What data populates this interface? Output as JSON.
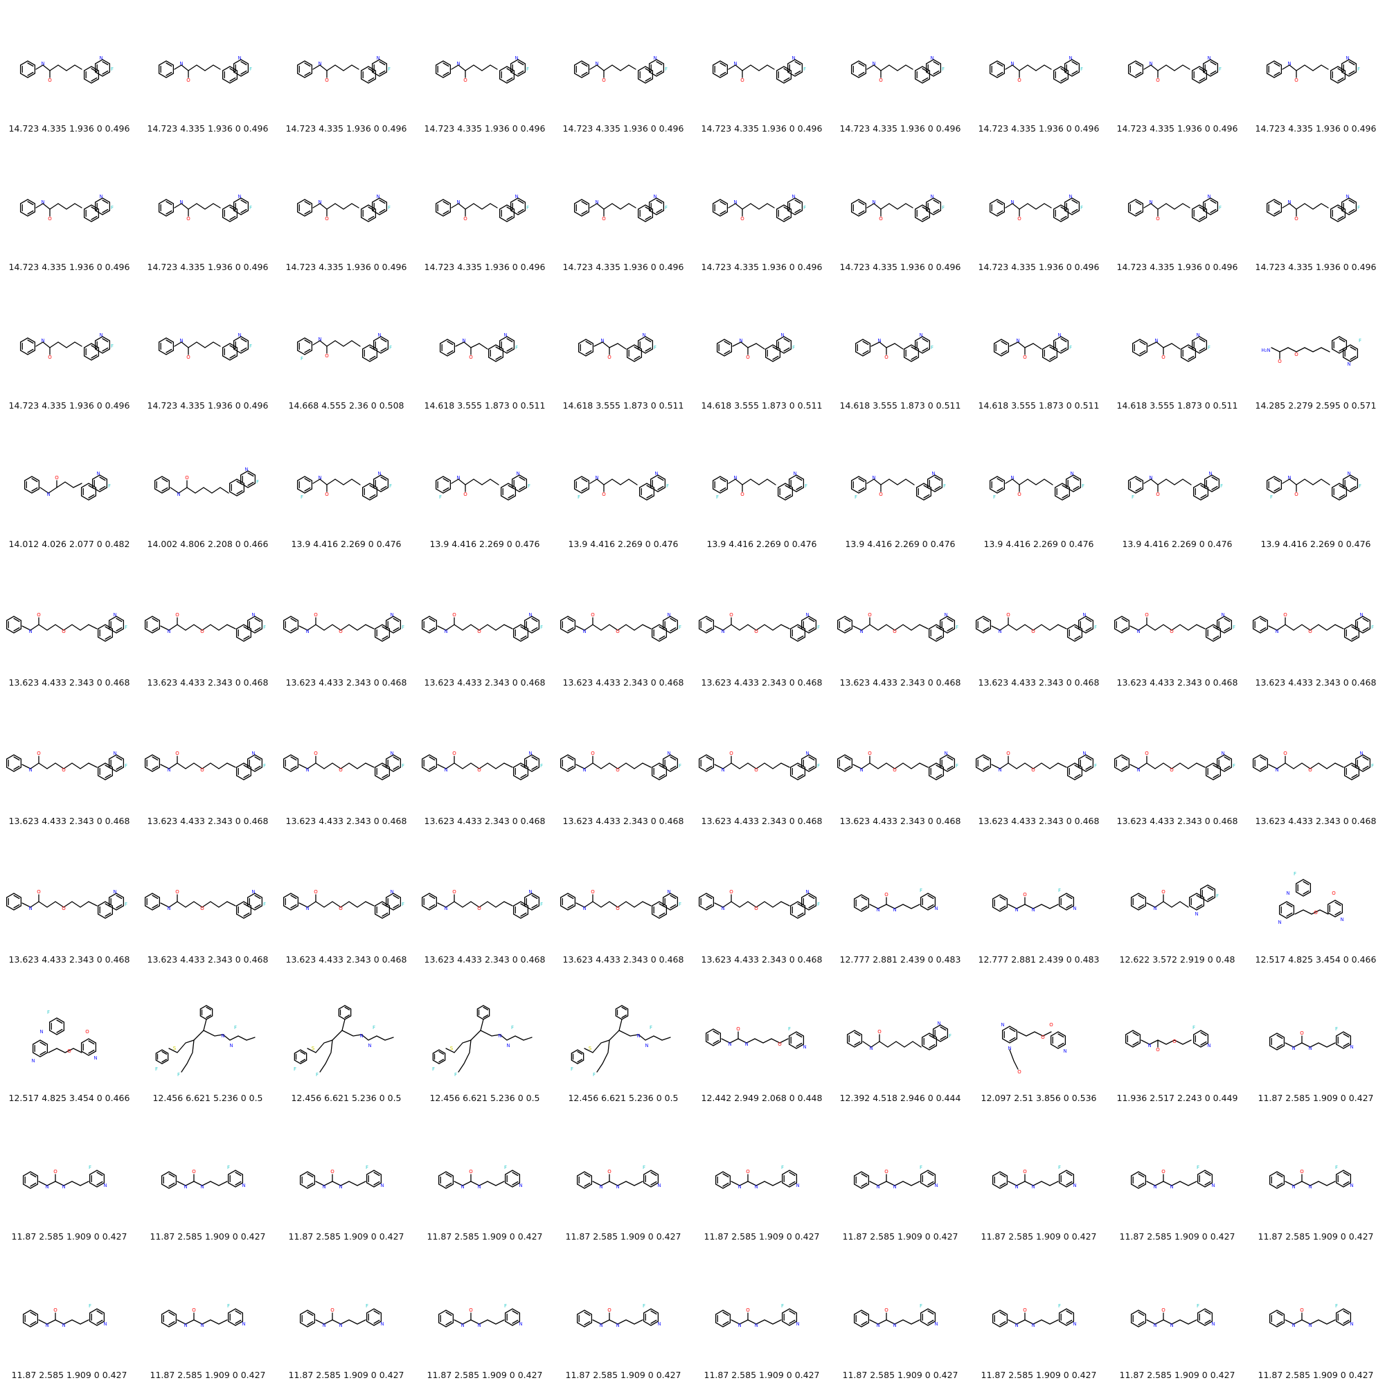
{
  "colors": {
    "N": "#2020ff",
    "O": "#ff0d0d",
    "F": "#33cccc",
    "S": "#cccc00",
    "bond": "#000000"
  },
  "cells": [
    {
      "caption": "14.723 4.335 1.936 0 0.496",
      "mol": "A"
    },
    {
      "caption": "14.723 4.335 1.936 0 0.496",
      "mol": "A"
    },
    {
      "caption": "14.723 4.335 1.936 0 0.496",
      "mol": "A"
    },
    {
      "caption": "14.723 4.335 1.936 0 0.496",
      "mol": "A"
    },
    {
      "caption": "14.723 4.335 1.936 0 0.496",
      "mol": "A"
    },
    {
      "caption": "14.723 4.335 1.936 0 0.496",
      "mol": "A"
    },
    {
      "caption": "14.723 4.335 1.936 0 0.496",
      "mol": "A"
    },
    {
      "caption": "14.723 4.335 1.936 0 0.496",
      "mol": "A"
    },
    {
      "caption": "14.723 4.335 1.936 0 0.496",
      "mol": "A"
    },
    {
      "caption": "14.723 4.335 1.936 0 0.496",
      "mol": "A"
    },
    {
      "caption": "14.723 4.335 1.936 0 0.496",
      "mol": "A"
    },
    {
      "caption": "14.723 4.335 1.936 0 0.496",
      "mol": "A"
    },
    {
      "caption": "14.723 4.335 1.936 0 0.496",
      "mol": "A"
    },
    {
      "caption": "14.723 4.335 1.936 0 0.496",
      "mol": "A"
    },
    {
      "caption": "14.723 4.335 1.936 0 0.496",
      "mol": "A"
    },
    {
      "caption": "14.723 4.335 1.936 0 0.496",
      "mol": "A"
    },
    {
      "caption": "14.723 4.335 1.936 0 0.496",
      "mol": "A"
    },
    {
      "caption": "14.723 4.335 1.936 0 0.496",
      "mol": "A"
    },
    {
      "caption": "14.723 4.335 1.936 0 0.496",
      "mol": "A"
    },
    {
      "caption": "14.723 4.335 1.936 0 0.496",
      "mol": "A"
    },
    {
      "caption": "14.723 4.335 1.936 0 0.496",
      "mol": "A"
    },
    {
      "caption": "14.723 4.335 1.936 0 0.496",
      "mol": "A"
    },
    {
      "caption": "14.668 4.555 2.36 0 0.508",
      "mol": "B"
    },
    {
      "caption": "14.618 3.555 1.873 0 0.511",
      "mol": "C"
    },
    {
      "caption": "14.618 3.555 1.873 0 0.511",
      "mol": "C"
    },
    {
      "caption": "14.618 3.555 1.873 0 0.511",
      "mol": "C"
    },
    {
      "caption": "14.618 3.555 1.873 0 0.511",
      "mol": "C"
    },
    {
      "caption": "14.618 3.555 1.873 0 0.511",
      "mol": "C"
    },
    {
      "caption": "14.618 3.555 1.873 0 0.511",
      "mol": "C"
    },
    {
      "caption": "14.285 2.279 2.595 0 0.571",
      "mol": "D"
    },
    {
      "caption": "14.012 4.026 2.077 0 0.482",
      "mol": "E"
    },
    {
      "caption": "14.002 4.806 2.208 0 0.466",
      "mol": "F"
    },
    {
      "caption": "13.9 4.416 2.269 0 0.476",
      "mol": "B"
    },
    {
      "caption": "13.9 4.416 2.269 0 0.476",
      "mol": "B"
    },
    {
      "caption": "13.9 4.416 2.269 0 0.476",
      "mol": "B"
    },
    {
      "caption": "13.9 4.416 2.269 0 0.476",
      "mol": "B"
    },
    {
      "caption": "13.9 4.416 2.269 0 0.476",
      "mol": "B"
    },
    {
      "caption": "13.9 4.416 2.269 0 0.476",
      "mol": "B"
    },
    {
      "caption": "13.9 4.416 2.269 0 0.476",
      "mol": "B"
    },
    {
      "caption": "13.9 4.416 2.269 0 0.476",
      "mol": "B"
    },
    {
      "caption": "13.623 4.433 2.343 0 0.468",
      "mol": "G"
    },
    {
      "caption": "13.623 4.433 2.343 0 0.468",
      "mol": "G"
    },
    {
      "caption": "13.623 4.433 2.343 0 0.468",
      "mol": "G"
    },
    {
      "caption": "13.623 4.433 2.343 0 0.468",
      "mol": "G"
    },
    {
      "caption": "13.623 4.433 2.343 0 0.468",
      "mol": "G"
    },
    {
      "caption": "13.623 4.433 2.343 0 0.468",
      "mol": "G"
    },
    {
      "caption": "13.623 4.433 2.343 0 0.468",
      "mol": "G"
    },
    {
      "caption": "13.623 4.433 2.343 0 0.468",
      "mol": "G"
    },
    {
      "caption": "13.623 4.433 2.343 0 0.468",
      "mol": "G"
    },
    {
      "caption": "13.623 4.433 2.343 0 0.468",
      "mol": "G"
    },
    {
      "caption": "13.623 4.433 2.343 0 0.468",
      "mol": "G"
    },
    {
      "caption": "13.623 4.433 2.343 0 0.468",
      "mol": "G"
    },
    {
      "caption": "13.623 4.433 2.343 0 0.468",
      "mol": "G"
    },
    {
      "caption": "13.623 4.433 2.343 0 0.468",
      "mol": "G"
    },
    {
      "caption": "13.623 4.433 2.343 0 0.468",
      "mol": "G"
    },
    {
      "caption": "13.623 4.433 2.343 0 0.468",
      "mol": "G"
    },
    {
      "caption": "13.623 4.433 2.343 0 0.468",
      "mol": "G"
    },
    {
      "caption": "13.623 4.433 2.343 0 0.468",
      "mol": "G"
    },
    {
      "caption": "13.623 4.433 2.343 0 0.468",
      "mol": "G"
    },
    {
      "caption": "13.623 4.433 2.343 0 0.468",
      "mol": "G"
    },
    {
      "caption": "13.623 4.433 2.343 0 0.468",
      "mol": "G"
    },
    {
      "caption": "13.623 4.433 2.343 0 0.468",
      "mol": "G"
    },
    {
      "caption": "13.623 4.433 2.343 0 0.468",
      "mol": "G"
    },
    {
      "caption": "13.623 4.433 2.343 0 0.468",
      "mol": "G"
    },
    {
      "caption": "13.623 4.433 2.343 0 0.468",
      "mol": "G"
    },
    {
      "caption": "13.623 4.433 2.343 0 0.468",
      "mol": "G"
    },
    {
      "caption": "12.777 2.881 2.439 0 0.483",
      "mol": "H"
    },
    {
      "caption": "12.777 2.881 2.439 0 0.483",
      "mol": "H"
    },
    {
      "caption": "12.622 3.572 2.919 0 0.48",
      "mol": "I"
    },
    {
      "caption": "12.517 4.825 3.454 0 0.466",
      "mol": "J"
    },
    {
      "caption": "12.517 4.825 3.454 0 0.466",
      "mol": "J"
    },
    {
      "caption": "12.456 6.621 5.236 0 0.5",
      "mol": "K"
    },
    {
      "caption": "12.456 6.621 5.236 0 0.5",
      "mol": "K"
    },
    {
      "caption": "12.456 6.621 5.236 0 0.5",
      "mol": "K"
    },
    {
      "caption": "12.456 6.621 5.236 0 0.5",
      "mol": "K"
    },
    {
      "caption": "12.442 2.949 2.068 0 0.448",
      "mol": "L"
    },
    {
      "caption": "12.392 4.518 2.946 0 0.444",
      "mol": "F"
    },
    {
      "caption": "12.097 2.51 3.856 0 0.536",
      "mol": "M"
    },
    {
      "caption": "11.936 2.517 2.243 0 0.449",
      "mol": "N"
    },
    {
      "caption": "11.87 2.585 1.909 0 0.427",
      "mol": "H"
    },
    {
      "caption": "11.87 2.585 1.909 0 0.427",
      "mol": "H"
    },
    {
      "caption": "11.87 2.585 1.909 0 0.427",
      "mol": "H"
    },
    {
      "caption": "11.87 2.585 1.909 0 0.427",
      "mol": "H"
    },
    {
      "caption": "11.87 2.585 1.909 0 0.427",
      "mol": "H"
    },
    {
      "caption": "11.87 2.585 1.909 0 0.427",
      "mol": "H"
    },
    {
      "caption": "11.87 2.585 1.909 0 0.427",
      "mol": "H"
    },
    {
      "caption": "11.87 2.585 1.909 0 0.427",
      "mol": "H"
    },
    {
      "caption": "11.87 2.585 1.909 0 0.427",
      "mol": "H"
    },
    {
      "caption": "11.87 2.585 1.909 0 0.427",
      "mol": "H"
    },
    {
      "caption": "11.87 2.585 1.909 0 0.427",
      "mol": "H"
    },
    {
      "caption": "11.87 2.585 1.909 0 0.427",
      "mol": "H"
    },
    {
      "caption": "11.87 2.585 1.909 0 0.427",
      "mol": "H"
    },
    {
      "caption": "11.87 2.585 1.909 0 0.427",
      "mol": "H"
    },
    {
      "caption": "11.87 2.585 1.909 0 0.427",
      "mol": "H"
    },
    {
      "caption": "11.87 2.585 1.909 0 0.427",
      "mol": "H"
    },
    {
      "caption": "11.87 2.585 1.909 0 0.427",
      "mol": "H"
    },
    {
      "caption": "11.87 2.585 1.909 0 0.427",
      "mol": "H"
    },
    {
      "caption": "11.87 2.585 1.909 0 0.427",
      "mol": "H"
    },
    {
      "caption": "11.87 2.585 1.909 0 0.427",
      "mol": "H"
    },
    {
      "caption": "11.87 2.585 1.909 0 0.427",
      "mol": "H"
    }
  ]
}
